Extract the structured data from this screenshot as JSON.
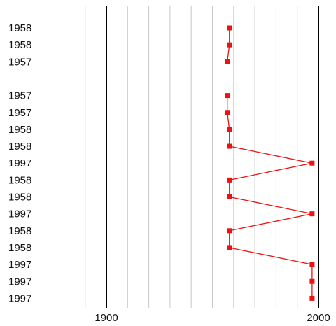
{
  "chart_data": {
    "type": "line",
    "orientation": "horizontal-values",
    "row_labels": [
      "1958",
      "1958",
      "1957",
      "",
      "1957",
      "1957",
      "1958",
      "1958",
      "1997",
      "1958",
      "1958",
      "1997",
      "1958",
      "1958",
      "1997",
      "1997",
      "1997"
    ],
    "values": [
      1958,
      1958,
      1957,
      null,
      1957,
      1957,
      1958,
      1958,
      1997,
      1958,
      1958,
      1997,
      1958,
      1958,
      1997,
      1997,
      1997
    ],
    "x_ticks": [
      1900,
      2000
    ],
    "x_tick_labels": [
      "1900",
      "2000"
    ],
    "xlim": [
      1880,
      2000
    ],
    "minor_grid_step": 10,
    "grid": true,
    "series": [
      {
        "values_ref": "values",
        "color": "#ee1111"
      }
    ],
    "title": "",
    "xlabel": "",
    "ylabel": ""
  },
  "colors": {
    "series": "#ee1111",
    "major_grid": "#000000",
    "minor_grid": "#c8c8c8",
    "text": "#111111"
  }
}
